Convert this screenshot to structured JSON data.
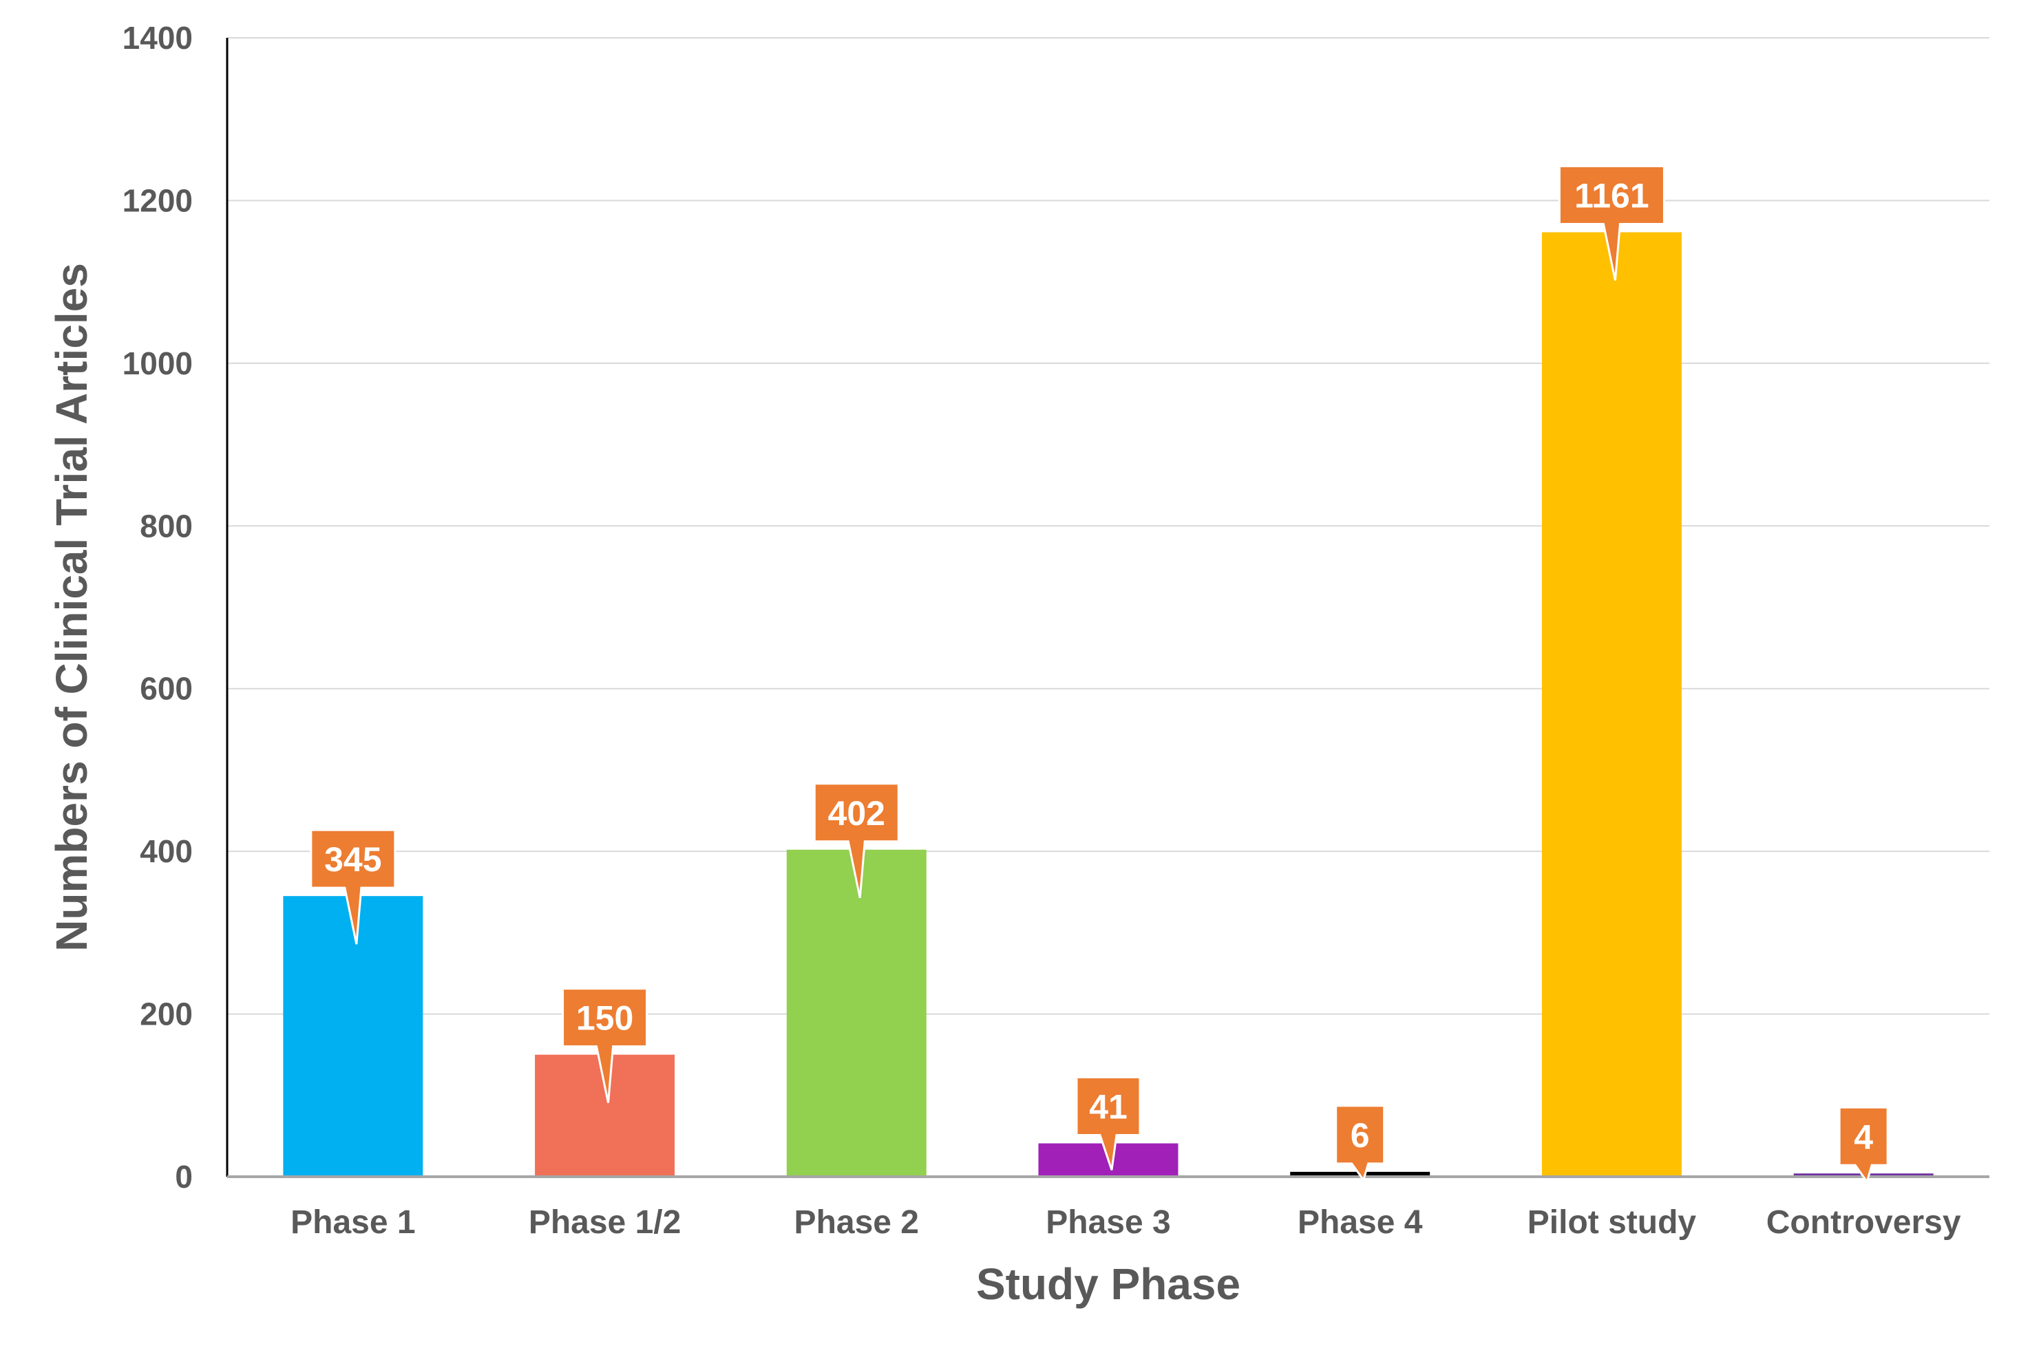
{
  "chart_data": {
    "type": "bar",
    "categories": [
      "Phase 1",
      "Phase 1/2",
      "Phase 2",
      "Phase 3",
      "Phase 4",
      "Pilot study",
      "Controversy"
    ],
    "values": [
      345,
      150,
      402,
      41,
      6,
      1161,
      4
    ],
    "data_labels": [
      "345",
      "150",
      "402",
      "41",
      "6",
      "1161",
      "4"
    ],
    "colors": [
      "#00B0F0",
      "#F07058",
      "#92D050",
      "#A020B8",
      "#000000",
      "#FFC000",
      "#7030A0"
    ],
    "label_color": "#ED7D31",
    "xlabel": "Study Phase",
    "ylabel": "Numbers of Clinical Trial Articles",
    "ylim": [
      0,
      1400
    ],
    "yticks": [
      "0",
      "200",
      "400",
      "600",
      "800",
      "1000",
      "1200",
      "1400"
    ],
    "grid": true
  }
}
